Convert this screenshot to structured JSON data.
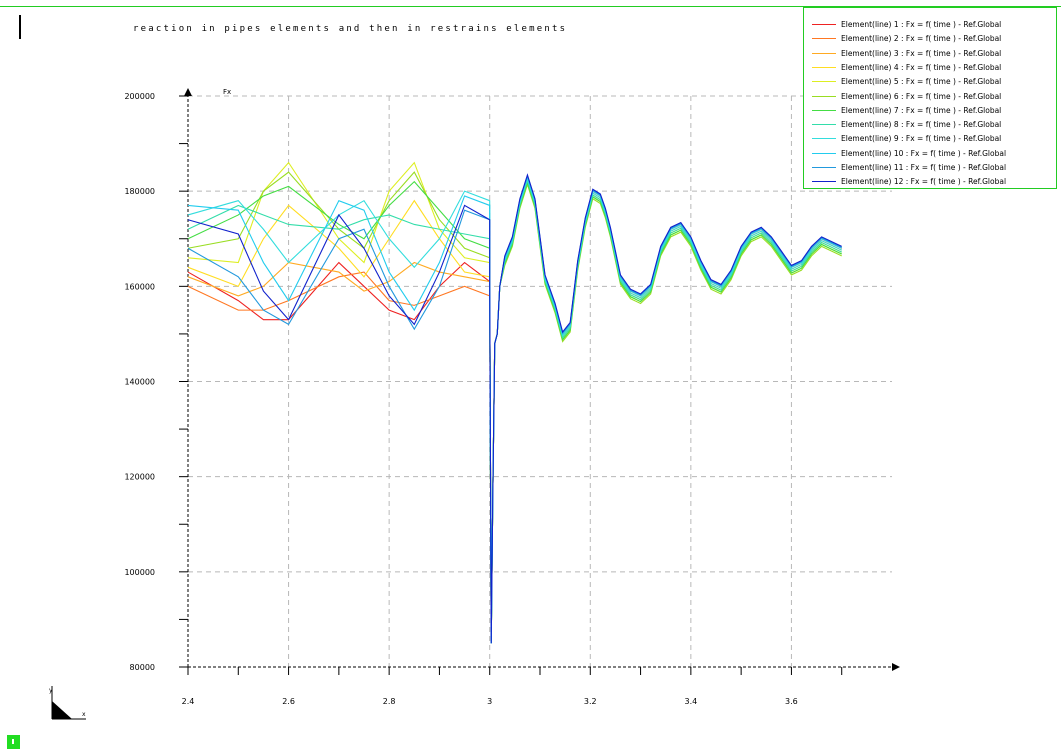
{
  "chart_data": {
    "type": "line",
    "title": "reaction in pipes elements and then in restrains elements",
    "ylabel": "Fx",
    "xlabel": "",
    "xlim": [
      2.4,
      3.8
    ],
    "ylim": [
      80000,
      200000
    ],
    "xticks": [
      2.4,
      2.6,
      2.8,
      3,
      3.2,
      3.4,
      3.6
    ],
    "xtick_labels": [
      "2.4",
      "2.6",
      "2.8",
      "3",
      "3.2",
      "3.4",
      "3.6"
    ],
    "yticks": [
      80000,
      100000,
      120000,
      140000,
      160000,
      180000,
      200000
    ],
    "ytick_labels": [
      "80000",
      "100000",
      "120000",
      "140000",
      "160000",
      "180000",
      "200000"
    ],
    "grid": true,
    "legend_position": "top-right",
    "shared_tail_x": [
      3.0,
      3.003,
      3.006,
      3.01,
      3.015,
      3.02,
      3.03,
      3.045,
      3.06,
      3.075,
      3.09,
      3.11,
      3.13,
      3.145,
      3.16,
      3.175,
      3.19,
      3.205,
      3.22,
      3.23,
      3.24,
      3.26,
      3.28,
      3.3,
      3.32,
      3.34,
      3.36,
      3.38,
      3.4,
      3.42,
      3.44,
      3.46,
      3.48,
      3.5,
      3.52,
      3.54,
      3.56,
      3.58,
      3.6,
      3.62,
      3.64,
      3.66,
      3.68,
      3.7
    ],
    "series": [
      {
        "name": "Element(line) 1 : Fx = f( time ) -  Ref.Global",
        "color": "#ee2222",
        "x": [
          2.4,
          2.5,
          2.55,
          2.6,
          2.7,
          2.75,
          2.8,
          2.85,
          2.9,
          2.95,
          3.0
        ],
        "y": [
          163000,
          157000,
          153000,
          153000,
          165000,
          160000,
          155000,
          153000,
          160000,
          165000,
          161000
        ],
        "tail_offset": 0
      },
      {
        "name": "Element(line) 2 : Fx = f( time ) -  Ref.Global",
        "color": "#ff7722",
        "x": [
          2.4,
          2.5,
          2.55,
          2.6,
          2.7,
          2.75,
          2.8,
          2.85,
          2.9,
          2.95,
          3.0
        ],
        "y": [
          160000,
          155000,
          155000,
          157000,
          162000,
          163000,
          157000,
          156000,
          158000,
          160000,
          158000
        ],
        "tail_offset": 0
      },
      {
        "name": "Element(line) 3 : Fx = f( time ) -  Ref.Global",
        "color": "#ffaa22",
        "x": [
          2.4,
          2.5,
          2.55,
          2.6,
          2.7,
          2.75,
          2.8,
          2.85,
          2.9,
          2.95,
          3.0
        ],
        "y": [
          162000,
          158000,
          160000,
          165000,
          163000,
          159000,
          161000,
          165000,
          163000,
          162000,
          161000
        ],
        "tail_offset": -400
      },
      {
        "name": "Element(line) 4 : Fx = f( time ) -  Ref.Global",
        "color": "#ffdd22",
        "x": [
          2.4,
          2.5,
          2.55,
          2.6,
          2.7,
          2.75,
          2.8,
          2.85,
          2.9,
          2.95,
          3.0
        ],
        "y": [
          164000,
          160000,
          170000,
          177000,
          168000,
          162000,
          170000,
          178000,
          170000,
          163000,
          162000
        ],
        "tail_offset": -800
      },
      {
        "name": "Element(line) 5 : Fx = f( time ) -  Ref.Global",
        "color": "#ddee22",
        "x": [
          2.4,
          2.5,
          2.55,
          2.6,
          2.7,
          2.75,
          2.8,
          2.85,
          2.9,
          2.95,
          3.0
        ],
        "y": [
          166000,
          165000,
          180000,
          186000,
          170000,
          165000,
          180000,
          186000,
          172000,
          166000,
          165000
        ],
        "tail_offset": -1200
      },
      {
        "name": "Element(line) 6 : Fx = f( time ) -  Ref.Global",
        "color": "#99dd22",
        "x": [
          2.4,
          2.5,
          2.55,
          2.6,
          2.7,
          2.75,
          2.8,
          2.85,
          2.9,
          2.95,
          3.0
        ],
        "y": [
          168000,
          170000,
          180000,
          184000,
          172000,
          168000,
          178000,
          184000,
          174000,
          168000,
          166000
        ],
        "tail_offset": -1600
      },
      {
        "name": "Element(line) 7 : Fx = f( time ) -  Ref.Global",
        "color": "#44dd44",
        "x": [
          2.4,
          2.5,
          2.55,
          2.6,
          2.7,
          2.75,
          2.8,
          2.85,
          2.9,
          2.95,
          3.0
        ],
        "y": [
          170000,
          175000,
          179000,
          181000,
          173000,
          170000,
          177000,
          182000,
          176000,
          170000,
          168000
        ],
        "tail_offset": -1200
      },
      {
        "name": "Element(line) 8 : Fx = f( time ) -  Ref.Global",
        "color": "#33ddaa",
        "x": [
          2.4,
          2.5,
          2.55,
          2.6,
          2.7,
          2.75,
          2.8,
          2.85,
          2.9,
          2.95,
          3.0
        ],
        "y": [
          172000,
          177000,
          175000,
          173000,
          172000,
          174000,
          175000,
          173000,
          172000,
          171000,
          170000
        ],
        "tail_offset": -800
      },
      {
        "name": "Element(line) 9 : Fx = f( time ) -  Ref.Global",
        "color": "#33dddd",
        "x": [
          2.4,
          2.5,
          2.55,
          2.6,
          2.7,
          2.75,
          2.8,
          2.85,
          2.9,
          2.95,
          3.0
        ],
        "y": [
          175000,
          178000,
          172000,
          165000,
          175000,
          178000,
          170000,
          164000,
          170000,
          180000,
          178000
        ],
        "tail_offset": -400
      },
      {
        "name": "Element(line) 10 : Fx = f( time ) -  Ref.Global",
        "color": "#22ccee",
        "x": [
          2.4,
          2.5,
          2.55,
          2.6,
          2.7,
          2.75,
          2.8,
          2.85,
          2.9,
          2.95,
          3.0
        ],
        "y": [
          177000,
          176000,
          165000,
          157000,
          178000,
          176000,
          163000,
          155000,
          165000,
          179000,
          177000
        ],
        "tail_offset": 0
      },
      {
        "name": "Element(line) 11 : Fx = f( time ) -  Ref.Global",
        "color": "#2299dd",
        "x": [
          2.4,
          2.5,
          2.55,
          2.6,
          2.7,
          2.75,
          2.8,
          2.85,
          2.9,
          2.95,
          3.0
        ],
        "y": [
          168000,
          162000,
          155000,
          152000,
          170000,
          172000,
          160000,
          151000,
          160000,
          176000,
          174000
        ],
        "tail_offset": 200
      },
      {
        "name": "Element(line) 12 : Fx = f( time ) -  Ref.Global",
        "color": "#1122cc",
        "x": [
          2.4,
          2.5,
          2.55,
          2.6,
          2.7,
          2.75,
          2.8,
          2.85,
          2.9,
          2.95,
          3.0
        ],
        "y": [
          174000,
          171000,
          159000,
          153000,
          175000,
          168000,
          158000,
          152000,
          163000,
          177000,
          174000
        ],
        "tail_offset": 400
      }
    ],
    "shared_tail_y": [
      160000,
      85000,
      115000,
      148000,
      150000,
      160000,
      166000,
      170000,
      178000,
      183000,
      178000,
      162000,
      156000,
      150000,
      152000,
      165000,
      174000,
      180000,
      179000,
      176000,
      172000,
      162000,
      159000,
      158000,
      160000,
      168000,
      172000,
      173000,
      170000,
      165000,
      161000,
      160000,
      163000,
      168000,
      171000,
      172000,
      170000,
      167000,
      164000,
      165000,
      168000,
      170000,
      169000,
      168000
    ]
  }
}
